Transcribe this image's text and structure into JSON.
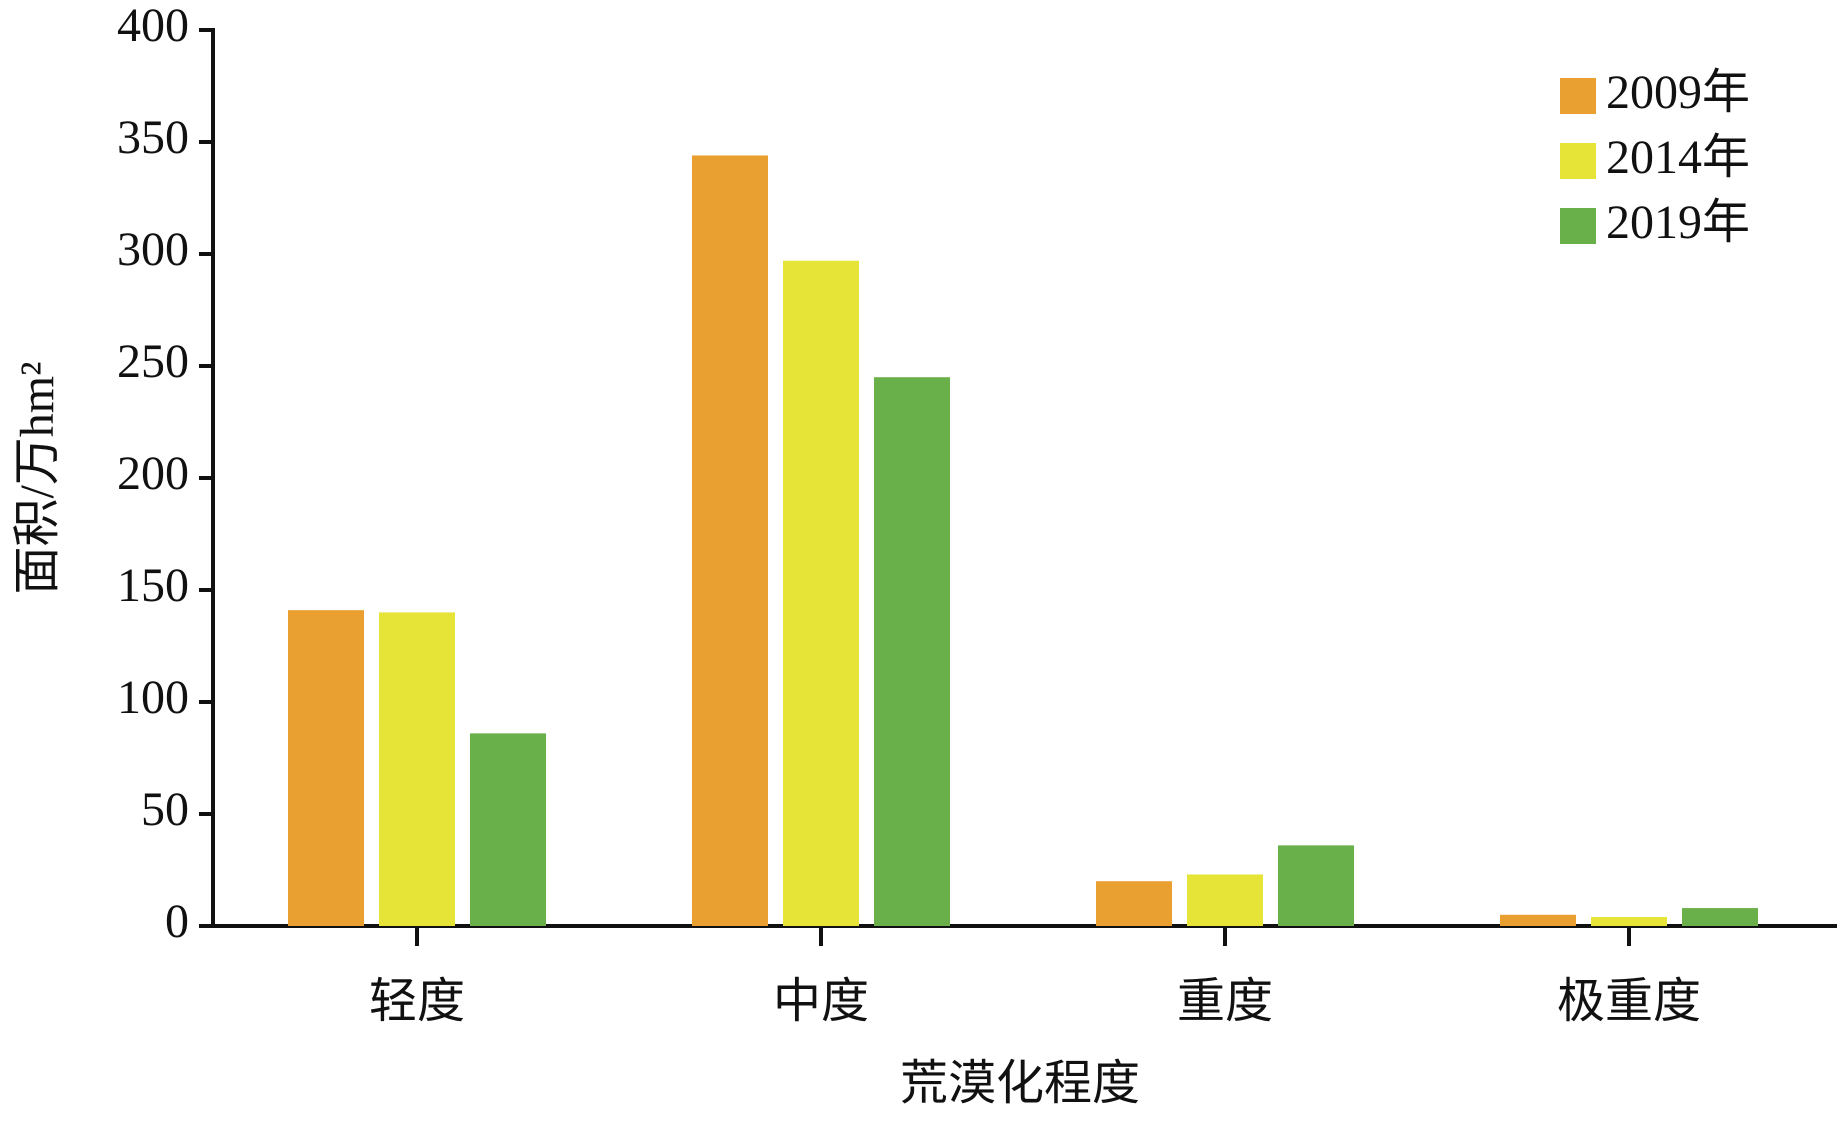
{
  "chart_data": {
    "type": "bar",
    "x_label": "荒漠化程度",
    "y_label": "面积/万hm²",
    "categories": [
      "轻度",
      "中度",
      "重度",
      "极重度"
    ],
    "series": [
      {
        "name": "2009年",
        "color": "#e9a030",
        "values": [
          141,
          344,
          20,
          5
        ]
      },
      {
        "name": "2014年",
        "color": "#e6e436",
        "values": [
          140,
          297,
          23,
          4
        ]
      },
      {
        "name": "2019年",
        "color": "#6ab04a",
        "values": [
          86,
          245,
          36,
          8
        ]
      }
    ],
    "ylim": [
      0,
      400
    ],
    "yticks": [
      0,
      50,
      100,
      150,
      200,
      250,
      300,
      350,
      400
    ],
    "legend": "upper right"
  }
}
